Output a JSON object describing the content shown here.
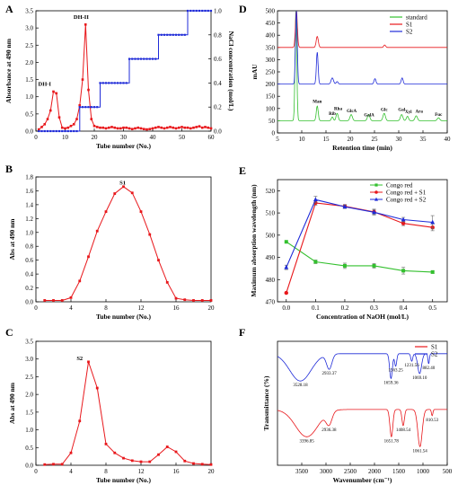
{
  "chart_data": [
    {
      "panel": "A",
      "type": "line",
      "xlabel": "Tube number (No.)",
      "ylabel": "Absorbance at 490 nm",
      "y2label": "NaCl concentration (mol/L)",
      "xlim": [
        0,
        60
      ],
      "ylim": [
        0,
        3.5
      ],
      "y2lim": [
        0,
        1.0
      ],
      "xticks": [
        0,
        10,
        20,
        30,
        40,
        50,
        60
      ],
      "yticks": [
        0,
        0.5,
        1.0,
        1.5,
        2.0,
        2.5,
        3.0,
        3.5
      ],
      "y2ticks": [
        0,
        0.2,
        0.4,
        0.6,
        0.8,
        1.0
      ],
      "x": [
        1,
        2,
        3,
        4,
        5,
        6,
        7,
        8,
        9,
        10,
        11,
        12,
        13,
        14,
        15,
        16,
        17,
        18,
        19,
        20,
        21,
        22,
        23,
        24,
        25,
        26,
        27,
        28,
        29,
        30,
        31,
        32,
        33,
        34,
        35,
        36,
        37,
        38,
        39,
        40,
        41,
        42,
        43,
        44,
        45,
        46,
        47,
        48,
        49,
        50,
        51,
        52,
        53,
        54,
        55,
        56,
        57,
        58,
        59,
        60
      ],
      "series": [
        {
          "color": "#e8171b",
          "axis": "left",
          "values": [
            0.05,
            0.12,
            0.2,
            0.35,
            0.6,
            1.15,
            1.1,
            0.4,
            0.1,
            0.08,
            0.1,
            0.15,
            0.2,
            0.35,
            0.75,
            1.5,
            3.1,
            1.2,
            0.35,
            0.15,
            0.12,
            0.1,
            0.1,
            0.08,
            0.1,
            0.12,
            0.1,
            0.08,
            0.08,
            0.1,
            0.1,
            0.08,
            0.06,
            0.08,
            0.1,
            0.08,
            0.06,
            0.05,
            0.06,
            0.08,
            0.1,
            0.12,
            0.1,
            0.08,
            0.1,
            0.12,
            0.1,
            0.08,
            0.1,
            0.12,
            0.1,
            0.1,
            0.08,
            0.1,
            0.12,
            0.14,
            0.1,
            0.12,
            0.1,
            0.08
          ]
        },
        {
          "color": "#1f2bd8",
          "axis": "right",
          "values": [
            0,
            0,
            0,
            0,
            0,
            0,
            0,
            0,
            0,
            0,
            0,
            0,
            0,
            0,
            0.2,
            0.2,
            0.2,
            0.2,
            0.2,
            0.2,
            0.2,
            0.4,
            0.4,
            0.4,
            0.4,
            0.4,
            0.4,
            0.4,
            0.4,
            0.4,
            0.4,
            0.6,
            0.6,
            0.6,
            0.6,
            0.6,
            0.6,
            0.6,
            0.6,
            0.6,
            0.6,
            0.8,
            0.8,
            0.8,
            0.8,
            0.8,
            0.8,
            0.8,
            0.8,
            0.8,
            0.8,
            1.0,
            1.0,
            1.0,
            1.0,
            1.0,
            1.0,
            1.0,
            1.0,
            1.0
          ]
        }
      ],
      "annotations": [
        {
          "text": "DH-I",
          "x": 3,
          "y": 1.32
        },
        {
          "text": "DH-II",
          "x": 15.5,
          "y": 3.27
        }
      ]
    },
    {
      "panel": "B",
      "type": "line",
      "xlabel": "Tube number (No.)",
      "ylabel": "Abs at 490 nm",
      "xlim": [
        0,
        20
      ],
      "ylim": [
        0,
        1.8
      ],
      "xticks": [
        0,
        4,
        8,
        12,
        16,
        20
      ],
      "yticks": [
        0.0,
        0.2,
        0.4,
        0.6,
        0.8,
        1.0,
        1.2,
        1.4,
        1.6,
        1.8
      ],
      "x": [
        1,
        2,
        3,
        4,
        5,
        6,
        7,
        8,
        9,
        10,
        11,
        12,
        13,
        14,
        15,
        16,
        17,
        18,
        19,
        20
      ],
      "series": [
        {
          "color": "#e8171b",
          "values": [
            0.02,
            0.02,
            0.02,
            0.06,
            0.3,
            0.65,
            1.02,
            1.3,
            1.56,
            1.66,
            1.57,
            1.3,
            0.97,
            0.6,
            0.28,
            0.05,
            0.03,
            0.02,
            0.02,
            0.02
          ]
        }
      ],
      "annotations": [
        {
          "text": "S1",
          "x": 9.9,
          "y": 1.69
        }
      ]
    },
    {
      "panel": "C",
      "type": "line",
      "xlabel": "Tube number (No.)",
      "ylabel": "Abs at 490 nm",
      "xlim": [
        0,
        20
      ],
      "ylim": [
        0,
        3.5
      ],
      "xticks": [
        0,
        4,
        8,
        12,
        16,
        20
      ],
      "yticks": [
        0.0,
        0.5,
        1.0,
        1.5,
        2.0,
        2.5,
        3.0,
        3.5
      ],
      "x": [
        1,
        2,
        3,
        4,
        5,
        6,
        7,
        8,
        9,
        10,
        11,
        12,
        13,
        14,
        15,
        16,
        17,
        18,
        19,
        20
      ],
      "series": [
        {
          "color": "#e8171b",
          "values": [
            0.02,
            0.03,
            0.03,
            0.35,
            1.25,
            2.92,
            2.18,
            0.6,
            0.35,
            0.2,
            0.13,
            0.1,
            0.1,
            0.3,
            0.52,
            0.38,
            0.12,
            0.05,
            0.03,
            0.02
          ]
        }
      ],
      "annotations": [
        {
          "text": "S2",
          "x": 5.0,
          "y": 2.97
        }
      ]
    },
    {
      "panel": "D",
      "type": "line",
      "xlabel": "Retention time (min)",
      "ylabel": "mAU",
      "xlim": [
        5,
        40
      ],
      "ylim": [
        0,
        500
      ],
      "xticks": [
        5,
        10,
        15,
        20,
        25,
        30,
        35,
        40
      ],
      "yticks": [
        0,
        50,
        100,
        150,
        200,
        250,
        300,
        350,
        400,
        450,
        500
      ],
      "legend": [
        "standard",
        "S1",
        "S2"
      ],
      "series": [
        {
          "name": "standard",
          "color": "#33c02e",
          "baseline": 50,
          "peaks": [
            [
              8.8,
              450,
              0.18
            ],
            [
              13.2,
              60,
              0.2
            ],
            [
              16.3,
              15,
              0.2
            ],
            [
              17.3,
              30,
              0.22
            ],
            [
              20.2,
              25,
              0.25
            ],
            [
              23.8,
              25,
              0.25
            ],
            [
              27.0,
              30,
              0.25
            ],
            [
              30.6,
              25,
              0.25
            ],
            [
              31.8,
              18,
              0.22
            ],
            [
              33.6,
              20,
              0.25
            ],
            [
              38.2,
              12,
              0.25
            ]
          ]
        },
        {
          "name": "S1",
          "color": "#e8171b",
          "baseline": 350,
          "peaks": [
            [
              8.9,
              150,
              0.2
            ],
            [
              13.2,
              45,
              0.22
            ],
            [
              27.1,
              10,
              0.2
            ]
          ]
        },
        {
          "name": "S2",
          "color": "#1f2bd8",
          "baseline": 200,
          "peaks": [
            [
              8.9,
              300,
              0.18
            ],
            [
              13.2,
              130,
              0.18
            ],
            [
              16.3,
              25,
              0.25
            ],
            [
              17.3,
              10,
              0.2
            ],
            [
              25.1,
              22,
              0.2
            ],
            [
              30.7,
              25,
              0.2
            ]
          ]
        }
      ],
      "peak_labels": [
        {
          "text": "Man",
          "x": 13.2,
          "y": 123
        },
        {
          "text": "Rha",
          "x": 17.5,
          "y": 93
        },
        {
          "text": "Rib",
          "x": 16.3,
          "y": 73
        },
        {
          "text": "GlcA",
          "x": 20.3,
          "y": 85
        },
        {
          "text": "GalA",
          "x": 23.9,
          "y": 68
        },
        {
          "text": "Glc",
          "x": 27.0,
          "y": 90
        },
        {
          "text": "Gal",
          "x": 30.6,
          "y": 90
        },
        {
          "text": "Xyl",
          "x": 32.0,
          "y": 80
        },
        {
          "text": "Ara",
          "x": 34.2,
          "y": 83
        },
        {
          "text": "Fuc",
          "x": 38.2,
          "y": 70
        }
      ]
    },
    {
      "panel": "E",
      "type": "line",
      "xlabel": "Concentration of NaOH (mol/L)",
      "ylabel": "Maximum absorption wavelength (nm)",
      "xlim": [
        -0.03,
        0.55
      ],
      "ylim": [
        470,
        525
      ],
      "xticks": [
        0.0,
        0.1,
        0.2,
        0.3,
        0.4,
        0.5
      ],
      "yticks": [
        470,
        480,
        490,
        500,
        510,
        520
      ],
      "x": [
        0.0,
        0.1,
        0.2,
        0.3,
        0.4,
        0.5
      ],
      "legend": [
        "Congo red",
        "Congo red + S1",
        "Congo red + S2"
      ],
      "series": [
        {
          "name": "Congo red",
          "color": "#33c02e",
          "marker": "square",
          "values": [
            497,
            488,
            486.2,
            486.2,
            484,
            483.4
          ],
          "err": [
            0,
            0.8,
            1.2,
            1.0,
            1.5,
            0.6
          ]
        },
        {
          "name": "Congo red + S1",
          "color": "#e8171b",
          "marker": "circle",
          "values": [
            474,
            514.5,
            513,
            510.5,
            505.3,
            503.5
          ],
          "err": [
            0,
            1.0,
            0.8,
            1.2,
            1.0,
            1.5
          ]
        },
        {
          "name": "Congo red + S2",
          "color": "#1f2bd8",
          "marker": "triangle",
          "values": [
            485.5,
            516,
            512.8,
            510.3,
            507,
            505.8
          ],
          "err": [
            1.0,
            1.5,
            0.8,
            1.2,
            1.0,
            3.0
          ]
        }
      ]
    },
    {
      "panel": "F",
      "type": "line",
      "xlabel": "Wavenumber (cm⁻¹)",
      "ylabel": "Transmittance (%)",
      "xlim": [
        4000,
        500
      ],
      "xreversed": true,
      "xticks": [
        3500,
        3000,
        2500,
        2000,
        1500,
        1000,
        500
      ],
      "legend": [
        "S1",
        "S2"
      ],
      "series": [
        {
          "name": "S1",
          "color": "#e8171b",
          "baseline": 0.45,
          "dips": [
            [
              3396.85,
              0.22,
              230
            ],
            [
              2936.38,
              0.1,
              60
            ],
            [
              1651.78,
              0.22,
              30
            ],
            [
              1408.54,
              0.13,
              25
            ],
            [
              1061.54,
              0.3,
              45
            ],
            [
              810.53,
              0.05,
              15
            ]
          ]
        },
        {
          "name": "S2",
          "color": "#1f2bd8",
          "baseline": 0.9,
          "dips": [
            [
              3528.18,
              0.22,
              220
            ],
            [
              2933.37,
              0.12,
              55
            ],
            [
              1659.36,
              0.2,
              28
            ],
            [
              1563.25,
              0.1,
              22
            ],
            [
              1231.56,
              0.06,
              20
            ],
            [
              1069.1,
              0.16,
              40
            ],
            [
              882.4,
              0.08,
              15
            ]
          ]
        }
      ],
      "peak_labels": [
        {
          "text": "3528.18",
          "x": 3528.18,
          "trace": "S2"
        },
        {
          "text": "2933.37",
          "x": 2933.37,
          "trace": "S2"
        },
        {
          "text": "1659.36",
          "x": 1659.36,
          "trace": "S2"
        },
        {
          "text": "1563.25",
          "x": 1563.25,
          "trace": "S2"
        },
        {
          "text": "1231.56",
          "x": 1231.56,
          "trace": "S2"
        },
        {
          "text": "1069.10",
          "x": 1069.1,
          "trace": "S2"
        },
        {
          "text": "882.40",
          "x": 882.4,
          "trace": "S2"
        },
        {
          "text": "3396.85",
          "x": 3396.85,
          "trace": "S1"
        },
        {
          "text": "2936.38",
          "x": 2936.38,
          "trace": "S1"
        },
        {
          "text": "1651.78",
          "x": 1651.78,
          "trace": "S1"
        },
        {
          "text": "1408.54",
          "x": 1408.54,
          "trace": "S1"
        },
        {
          "text": "1061.54",
          "x": 1061.54,
          "trace": "S1"
        },
        {
          "text": "810.53",
          "x": 810.53,
          "trace": "S1"
        }
      ]
    }
  ]
}
